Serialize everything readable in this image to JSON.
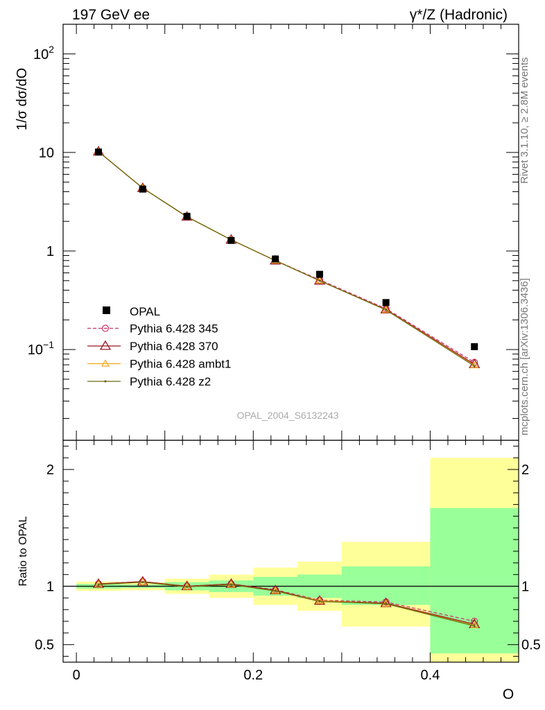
{
  "header": {
    "left": "197 GeV ee",
    "right": "γ*/Z (Hadronic)"
  },
  "side_text": {
    "rivet": "Rivet 3.1.10, ≥ 2.8M events",
    "mcplots": "mcplots.cern.ch [arXiv:1306.3436]"
  },
  "watermark": "OPAL_2004_S6132243",
  "chart_data": [
    {
      "type": "line",
      "ylabel": "1/σ dσ/dO",
      "yscale": "log",
      "ylim": [
        0.012,
        200
      ],
      "xlim": [
        -0.015,
        0.5
      ],
      "yticks": [
        {
          "v": 0.1,
          "base": "10",
          "exp": "−1"
        },
        {
          "v": 1,
          "base": "1",
          "exp": ""
        },
        {
          "v": 10,
          "base": "10",
          "exp": ""
        },
        {
          "v": 100,
          "base": "10",
          "exp": "2"
        }
      ],
      "x": [
        0.025,
        0.075,
        0.125,
        0.175,
        0.225,
        0.275,
        0.35,
        0.45
      ],
      "data": {
        "name": "OPAL",
        "values": [
          10.1,
          4.25,
          2.25,
          1.28,
          0.83,
          0.58,
          0.3,
          0.107
        ]
      },
      "series": [
        {
          "name": "Pythia 6.428 345",
          "values": [
            10.2,
            4.35,
            2.23,
            1.3,
            0.8,
            0.51,
            0.26,
            0.074
          ],
          "color": "#cc3366",
          "dash": "5,3",
          "marker": "circle"
        },
        {
          "name": "Pythia 6.428 370",
          "values": [
            10.2,
            4.35,
            2.23,
            1.3,
            0.8,
            0.5,
            0.255,
            0.071
          ],
          "color": "#99141f",
          "dash": "",
          "marker": "triangle"
        },
        {
          "name": "Pythia 6.428 ambt1",
          "values": [
            10.2,
            4.35,
            2.23,
            1.3,
            0.8,
            0.5,
            0.253,
            0.069
          ],
          "color": "#f0a81a",
          "dash": "",
          "marker": "triangle-small"
        },
        {
          "name": "Pythia 6.428 z2",
          "values": [
            10.2,
            4.35,
            2.23,
            1.3,
            0.8,
            0.5,
            0.252,
            0.068
          ],
          "color": "#6b6b10",
          "dash": "",
          "marker": "dot"
        }
      ]
    },
    {
      "type": "line",
      "ylabel": "Ratio to OPAL",
      "xlabel": "O",
      "ylim": [
        0.35,
        2.25
      ],
      "yticks": [
        0.5,
        1,
        2
      ],
      "xticks": [
        0,
        0.2,
        0.4
      ],
      "xlim": [
        -0.015,
        0.5
      ],
      "bins": [
        {
          "lo": 0.0,
          "hi": 0.05,
          "green": [
            0.98,
            1.02
          ],
          "yellow": [
            0.96,
            1.04
          ]
        },
        {
          "lo": 0.05,
          "hi": 0.1,
          "green": [
            0.985,
            1.015
          ],
          "yellow": [
            0.965,
            1.035
          ]
        },
        {
          "lo": 0.1,
          "hi": 0.15,
          "green": [
            0.965,
            1.035
          ],
          "yellow": [
            0.935,
            1.065
          ]
        },
        {
          "lo": 0.15,
          "hi": 0.2,
          "green": [
            0.95,
            1.05
          ],
          "yellow": [
            0.9,
            1.1
          ]
        },
        {
          "lo": 0.2,
          "hi": 0.25,
          "green": [
            0.92,
            1.08
          ],
          "yellow": [
            0.84,
            1.16
          ]
        },
        {
          "lo": 0.25,
          "hi": 0.3,
          "green": [
            0.9,
            1.1
          ],
          "yellow": [
            0.79,
            1.21
          ]
        },
        {
          "lo": 0.3,
          "hi": 0.4,
          "green": [
            0.84,
            1.17
          ],
          "yellow": [
            0.655,
            1.38
          ]
        },
        {
          "lo": 0.4,
          "hi": 0.5,
          "green": [
            0.425,
            1.67
          ],
          "yellow": [
            0.35,
            2.1
          ]
        }
      ],
      "x": [
        0.025,
        0.075,
        0.125,
        0.175,
        0.225,
        0.275,
        0.35,
        0.45
      ],
      "series": [
        {
          "name": "Pythia 6.428 345",
          "values": [
            1.02,
            1.04,
            1.0,
            1.02,
            0.97,
            0.88,
            0.865,
            0.7
          ]
        },
        {
          "name": "Pythia 6.428 370",
          "values": [
            1.02,
            1.04,
            1.0,
            1.02,
            0.965,
            0.875,
            0.855,
            0.675
          ]
        },
        {
          "name": "Pythia 6.428 ambt1",
          "values": [
            1.015,
            1.035,
            0.995,
            1.015,
            0.96,
            0.875,
            0.85,
            0.665
          ]
        },
        {
          "name": "Pythia 6.428 z2",
          "values": [
            1.015,
            1.035,
            0.995,
            1.015,
            0.96,
            0.87,
            0.85,
            0.66
          ]
        }
      ]
    }
  ]
}
